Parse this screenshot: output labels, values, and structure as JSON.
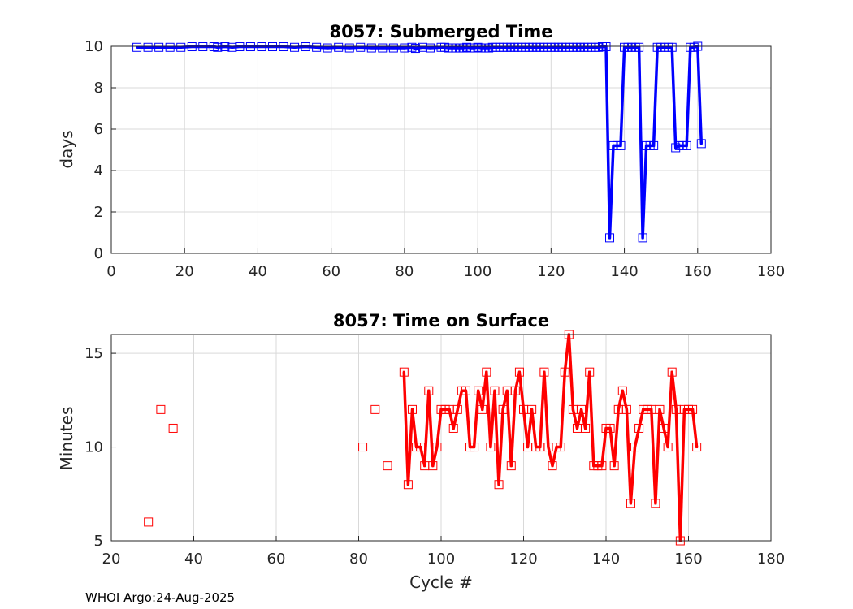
{
  "footer": "WHOI Argo:24-Aug-2025",
  "chart_data": [
    {
      "type": "line",
      "title": "8057: Submerged Time",
      "xlabel": "",
      "ylabel": "days",
      "xlim": [
        0,
        180
      ],
      "ylim": [
        0,
        10
      ],
      "xticks": [
        0,
        20,
        40,
        60,
        80,
        100,
        120,
        140,
        160,
        180
      ],
      "yticks": [
        0,
        2,
        4,
        6,
        8,
        10
      ],
      "grid": true,
      "color": "#0000ff",
      "marker": "square",
      "x": [
        7,
        10,
        13,
        16,
        19,
        22,
        25,
        28,
        29,
        31,
        33,
        35,
        38,
        41,
        44,
        47,
        50,
        53,
        56,
        59,
        62,
        65,
        68,
        71,
        74,
        77,
        80,
        82,
        83,
        85,
        87,
        90,
        91,
        92,
        93,
        94,
        95,
        96,
        97,
        98,
        99,
        100,
        101,
        102,
        103,
        104,
        105,
        106,
        107,
        108,
        109,
        110,
        111,
        112,
        113,
        114,
        115,
        116,
        117,
        118,
        119,
        120,
        121,
        122,
        123,
        124,
        125,
        126,
        127,
        128,
        129,
        130,
        131,
        132,
        133,
        134,
        135,
        136,
        137,
        138,
        139,
        140,
        141,
        142,
        143,
        144,
        145,
        146,
        147,
        148,
        149,
        150,
        151,
        152,
        153,
        154,
        155,
        156,
        157,
        158,
        159,
        160,
        161
      ],
      "y": [
        9.95,
        9.95,
        9.95,
        9.95,
        9.95,
        9.98,
        9.98,
        9.98,
        9.95,
        9.98,
        9.95,
        9.98,
        9.98,
        9.98,
        9.98,
        9.98,
        9.95,
        9.98,
        9.95,
        9.92,
        9.95,
        9.92,
        9.95,
        9.92,
        9.92,
        9.92,
        9.92,
        9.95,
        9.9,
        9.95,
        9.92,
        9.95,
        9.95,
        9.92,
        9.92,
        9.92,
        9.92,
        9.92,
        9.95,
        9.92,
        9.92,
        9.95,
        9.92,
        9.92,
        9.92,
        9.95,
        9.95,
        9.95,
        9.95,
        9.95,
        9.95,
        9.95,
        9.95,
        9.95,
        9.95,
        9.95,
        9.95,
        9.95,
        9.95,
        9.95,
        9.95,
        9.95,
        9.95,
        9.95,
        9.95,
        9.95,
        9.95,
        9.95,
        9.95,
        9.95,
        9.95,
        9.95,
        9.95,
        9.95,
        9.95,
        9.98,
        9.98,
        0.75,
        5.2,
        5.2,
        5.2,
        9.95,
        9.95,
        9.95,
        9.95,
        9.95,
        0.75,
        5.2,
        5.2,
        5.2,
        9.95,
        9.95,
        9.95,
        9.95,
        9.95,
        5.1,
        5.2,
        5.2,
        5.2,
        9.95,
        9.95,
        10.0,
        5.3
      ]
    },
    {
      "type": "line",
      "title": "8057: Time on Surface",
      "xlabel": "Cycle #",
      "ylabel": "Minutes",
      "xlim": [
        20,
        180
      ],
      "ylim": [
        5,
        16
      ],
      "xticks": [
        20,
        40,
        60,
        80,
        100,
        120,
        140,
        160,
        180
      ],
      "yticks": [
        5,
        10,
        15
      ],
      "grid": true,
      "color": "#ff0000",
      "marker": "square",
      "isolated_points": {
        "x": [
          29,
          32,
          35,
          81,
          84,
          87
        ],
        "y": [
          6,
          12,
          11,
          10,
          12,
          9
        ]
      },
      "x": [
        91,
        92,
        93,
        94,
        95,
        96,
        97,
        98,
        99,
        100,
        101,
        102,
        103,
        104,
        105,
        106,
        107,
        108,
        109,
        110,
        111,
        112,
        113,
        114,
        115,
        116,
        117,
        118,
        119,
        120,
        121,
        122,
        123,
        124,
        125,
        126,
        127,
        128,
        129,
        130,
        131,
        132,
        133,
        134,
        135,
        136,
        137,
        138,
        139,
        140,
        141,
        142,
        143,
        144,
        145,
        146,
        147,
        148,
        149,
        150,
        151,
        152,
        153,
        154,
        155,
        156,
        157,
        158,
        159,
        160,
        161,
        162
      ],
      "y": [
        14,
        8,
        12,
        10,
        10,
        9,
        13,
        9,
        10,
        12,
        12,
        12,
        11,
        12,
        13,
        13,
        10,
        10,
        13,
        12,
        14,
        10,
        13,
        8,
        12,
        13,
        9,
        13,
        14,
        12,
        10,
        12,
        10,
        10,
        14,
        10,
        9,
        10,
        10,
        14,
        16,
        12,
        11,
        12,
        11,
        14,
        9,
        9,
        9,
        11,
        11,
        9,
        12,
        13,
        12,
        7,
        10,
        11,
        12,
        12,
        12,
        7,
        12,
        11,
        10,
        14,
        12,
        5,
        12,
        12,
        12,
        10
      ]
    }
  ]
}
